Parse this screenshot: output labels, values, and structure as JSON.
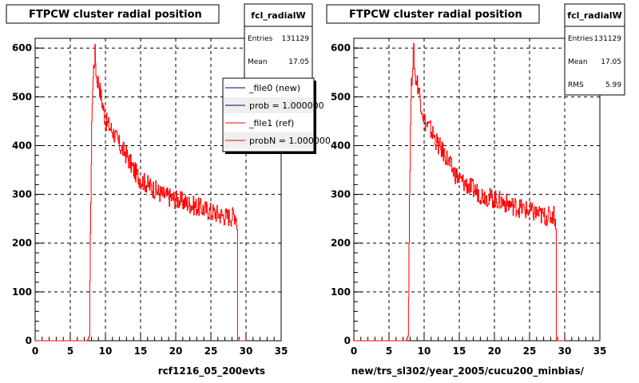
{
  "chart_data": [
    {
      "type": "line",
      "title": "FTPCW cluster radial position",
      "xlabel": "rcf1216_05_200evts",
      "ylabel": "",
      "xlim": [
        0,
        35
      ],
      "ylim": [
        0,
        620
      ],
      "xticks": [
        "0",
        "5",
        "10",
        "15",
        "20",
        "25",
        "30",
        "35"
      ],
      "yticks": [
        "0",
        "100",
        "200",
        "300",
        "400",
        "500",
        "600"
      ],
      "grid": true,
      "stats": {
        "name": "fcl_radialW",
        "rows": [
          {
            "label": "Entries",
            "value": "131129"
          },
          {
            "label": "Mean",
            "value": "17.05"
          }
        ]
      },
      "legend": {
        "placement": "top-right",
        "entries": [
          {
            "label": "_file0 (new)",
            "color": "#000080"
          },
          {
            "label": "prob = 1.000000",
            "color": "#000080"
          },
          {
            "label": "_file1 (ref)",
            "color": "#ff0000"
          },
          {
            "label": "probN = 1.000000",
            "color": "#ff0000"
          }
        ]
      },
      "series": [
        {
          "name": "_file1 (ref)",
          "color": "#ff0000",
          "x": [
            0,
            7.4,
            7.7,
            7.9,
            8.1,
            8.3,
            8.5,
            8.7,
            9.0,
            9.5,
            10,
            11,
            12,
            13,
            14,
            15,
            16,
            17,
            18,
            19,
            20,
            21,
            22,
            23,
            24,
            25,
            26,
            27,
            28,
            28.5,
            28.7,
            28.8,
            30
          ],
          "y": [
            0,
            0,
            10,
            300,
            500,
            560,
            590,
            540,
            530,
            490,
            450,
            430,
            400,
            380,
            350,
            330,
            320,
            310,
            300,
            295,
            290,
            285,
            280,
            275,
            270,
            265,
            260,
            255,
            255,
            260,
            240,
            0,
            0
          ]
        }
      ]
    },
    {
      "type": "line",
      "title": "FTPCW cluster radial position",
      "xlabel": "new/trs_sl302/year_2005/cucu200_minbias/",
      "ylabel": "",
      "xlim": [
        0,
        35
      ],
      "ylim": [
        0,
        620
      ],
      "xticks": [
        "0",
        "5",
        "10",
        "15",
        "20",
        "25",
        "30",
        "35"
      ],
      "yticks": [
        "0",
        "100",
        "200",
        "300",
        "400",
        "500",
        "600"
      ],
      "grid": true,
      "stats": {
        "name": "fcl_radialW",
        "rows": [
          {
            "label": "Entries",
            "value": "131129"
          },
          {
            "label": "Mean",
            "value": "17.05"
          },
          {
            "label": "RMS",
            "value": "5.99"
          }
        ]
      },
      "series": [
        {
          "name": "",
          "color": "#ff0000",
          "x": [
            0,
            7.4,
            7.7,
            7.9,
            8.1,
            8.3,
            8.5,
            8.7,
            9.0,
            9.5,
            10,
            11,
            12,
            13,
            14,
            15,
            16,
            17,
            18,
            19,
            20,
            21,
            22,
            23,
            24,
            25,
            26,
            27,
            28,
            28.5,
            28.7,
            28.8,
            30
          ],
          "y": [
            0,
            0,
            10,
            300,
            500,
            560,
            590,
            540,
            530,
            490,
            450,
            430,
            400,
            380,
            350,
            330,
            320,
            310,
            300,
            295,
            290,
            285,
            280,
            275,
            270,
            265,
            260,
            255,
            255,
            260,
            240,
            0,
            0
          ]
        }
      ]
    }
  ]
}
